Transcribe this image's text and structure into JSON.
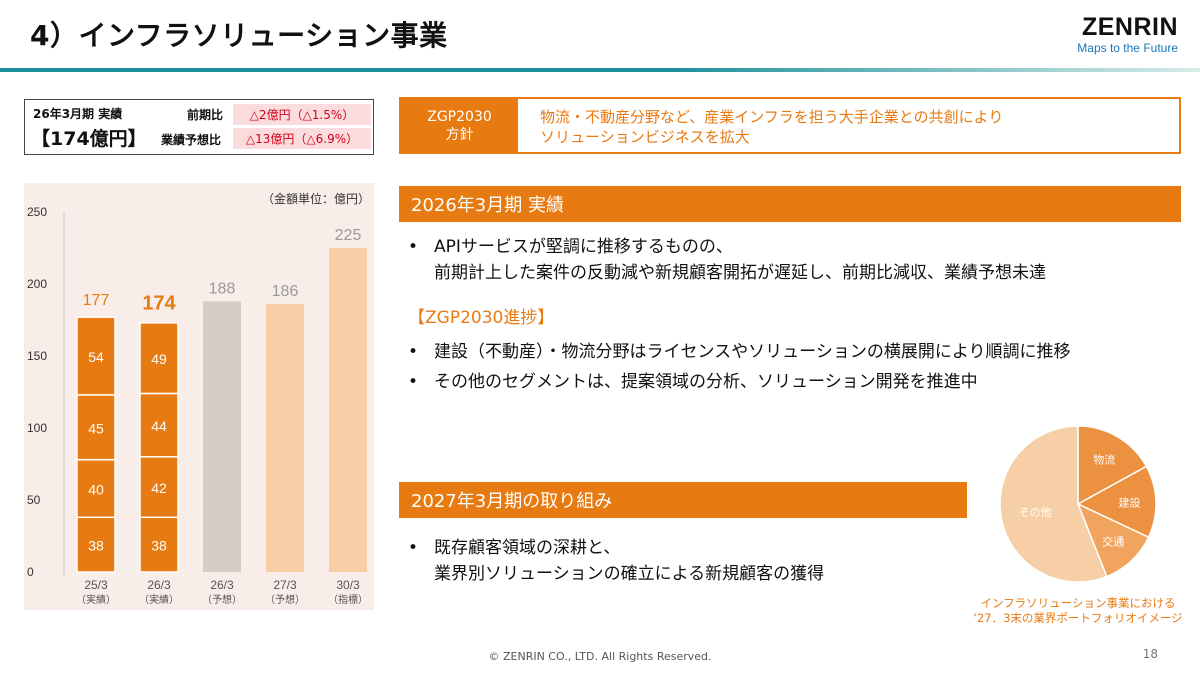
{
  "header": {
    "title": "4）インフラソリューション事業",
    "logo_brand": "ZENRIN",
    "logo_tagline": "Maps to the Future"
  },
  "summary": {
    "period_label": "26年3月期 実績",
    "amount": "【174億円】",
    "yoy_label": "前期比",
    "yoy_value": "△2億円（△1.5%）",
    "forecast_label": "業績予想比",
    "forecast_value": "△13億円（△6.9%）"
  },
  "policy": {
    "tag_line1": "ZGP2030",
    "tag_line2": "方針",
    "text_line1": "物流・不動産分野など、産業インフラを担う大手企業との共創により",
    "text_line2": "ソリューションビジネスを拡大"
  },
  "colors": {
    "accent_orange": "#e87a12",
    "teal_line": "#1a8e9a",
    "bar_actual": "#e87a12",
    "bar_forecast_2026": "#d6cdc8",
    "bar_forecast_2027": "#f6cfa7",
    "bar_target": "#f6cfa7",
    "alert_red": "#d3001b",
    "alert_pink_bg": "#fbdcdc"
  },
  "chart_data": {
    "type": "bar",
    "unit_label": "（金額単位：億円）",
    "ylim": [
      0,
      250
    ],
    "yticks": [
      0,
      50,
      100,
      150,
      200,
      250
    ],
    "categories": [
      {
        "line1": "25/3",
        "line2": "（実績）"
      },
      {
        "line1": "26/3",
        "line2": "（実績）"
      },
      {
        "line1": "26/3",
        "line2": "（予想）"
      },
      {
        "line1": "27/3",
        "line2": "（予想）"
      },
      {
        "line1": "30/3",
        "line2": "（指標）"
      }
    ],
    "bars": [
      {
        "kind": "stacked",
        "total": 177,
        "segments": [
          38,
          40,
          45,
          54
        ],
        "color": "#e87a12",
        "total_color": "#e87a12",
        "total_bold": false
      },
      {
        "kind": "stacked",
        "total": 174,
        "segments": [
          38,
          42,
          44,
          49
        ],
        "color": "#e87a12",
        "total_color": "#e87a12",
        "total_bold": true
      },
      {
        "kind": "single",
        "total": 188,
        "color": "#d6cdc8",
        "total_color": "#9a9a9a",
        "total_bold": false
      },
      {
        "kind": "single",
        "total": 186,
        "color": "#f6cfa7",
        "total_color": "#9a9a9a",
        "total_bold": false
      },
      {
        "kind": "single",
        "total": 225,
        "color": "#f6cfa7",
        "total_color": "#9a9a9a",
        "total_bold": false
      }
    ],
    "grid": false,
    "legend": "none"
  },
  "results": {
    "heading": "2026年3月期 実績",
    "bullet1_line1": "APIサービスが堅調に推移するものの、",
    "bullet1_line2": "前期計上した案件の反動減や新規顧客開拓が遅延し、前期比減収、業績予想未達",
    "progress_title": "【ZGP2030進捗】",
    "progress_bullets": [
      "建設（不動産）・物流分野はライセンスやソリューションの横展開により順調に推移",
      "その他のセグメントは、提案領域の分析、ソリューション開発を推進中"
    ]
  },
  "initiatives": {
    "heading": "2027年3月期の取り組み",
    "bullet1_line1": "既存顧客領域の深耕と、",
    "bullet1_line2": "業界別ソリューションの確立による新規顧客の獲得"
  },
  "pie_chart": {
    "type": "pie",
    "slices": [
      {
        "label": "物流",
        "share": 0.17
      },
      {
        "label": "建設",
        "share": 0.15
      },
      {
        "label": "交通",
        "share": 0.12
      },
      {
        "label": "その他",
        "share": 0.56
      }
    ],
    "colors": [
      "#eb9140",
      "#eb9140",
      "#f0a45e",
      "#f6cfa7"
    ],
    "caption_line1": "インフラソリューション事業における",
    "caption_line2": "‘27．3末の業界ポートフォリオイメージ"
  },
  "footer": {
    "copyright": "© ZENRIN CO., LTD. All Rights Reserved.",
    "page_number": "18"
  }
}
